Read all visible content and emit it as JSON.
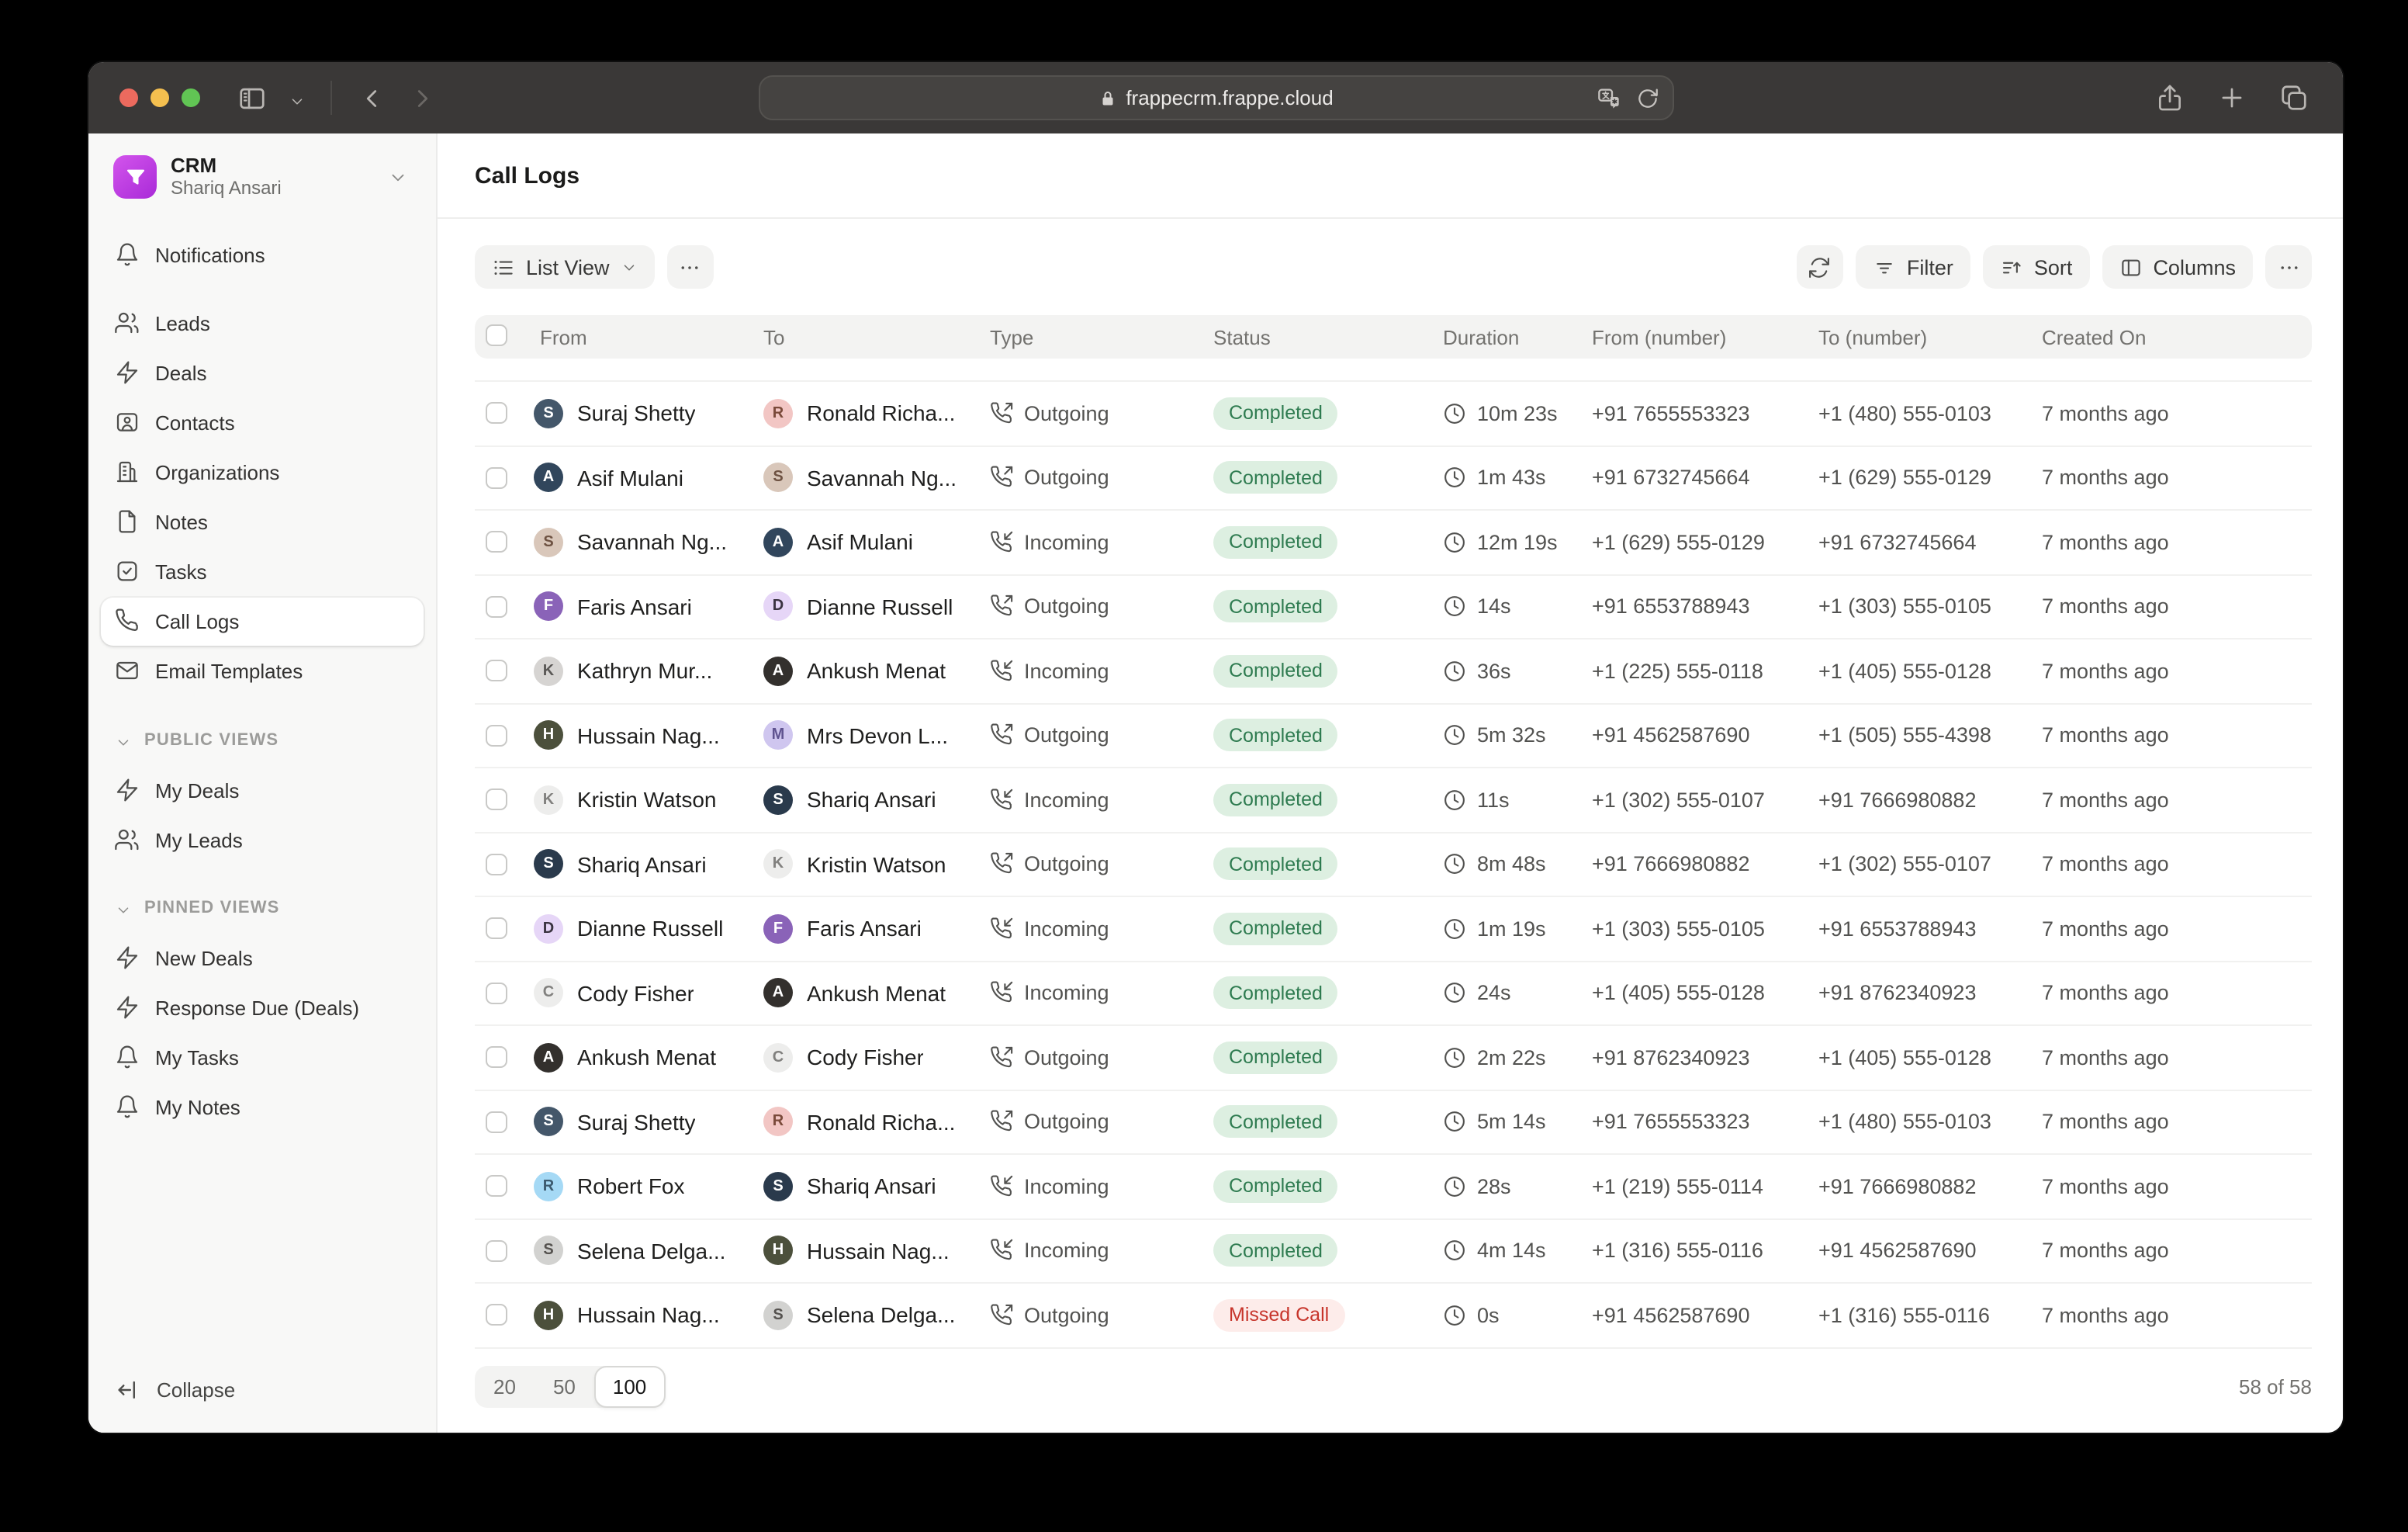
{
  "browser": {
    "url": "frappecrm.frappe.cloud"
  },
  "workspace": {
    "app_name": "CRM",
    "user_name": "Shariq Ansari"
  },
  "sidebar": {
    "nav_items": [
      {
        "label": "Notifications",
        "icon": "bell",
        "gap_below": true
      },
      {
        "label": "Leads",
        "icon": "users"
      },
      {
        "label": "Deals",
        "icon": "zap"
      },
      {
        "label": "Contacts",
        "icon": "contact"
      },
      {
        "label": "Organizations",
        "icon": "building"
      },
      {
        "label": "Notes",
        "icon": "file"
      },
      {
        "label": "Tasks",
        "icon": "check-square"
      },
      {
        "label": "Call Logs",
        "icon": "phone",
        "active": true
      },
      {
        "label": "Email Templates",
        "icon": "envelope"
      }
    ],
    "sections": [
      {
        "title": "PUBLIC VIEWS",
        "items": [
          {
            "label": "My Deals",
            "icon": "zap"
          },
          {
            "label": "My Leads",
            "icon": "users"
          }
        ]
      },
      {
        "title": "PINNED VIEWS",
        "items": [
          {
            "label": "New Deals",
            "icon": "zap"
          },
          {
            "label": "Response Due (Deals)",
            "icon": "zap"
          },
          {
            "label": "My Tasks",
            "icon": "bell"
          },
          {
            "label": "My Notes",
            "icon": "bell"
          }
        ]
      }
    ],
    "collapse_label": "Collapse"
  },
  "page": {
    "title": "Call Logs"
  },
  "toolbar": {
    "view_label": "List View",
    "filter_label": "Filter",
    "sort_label": "Sort",
    "columns_label": "Columns"
  },
  "table": {
    "columns": [
      "From",
      "To",
      "Type",
      "Status",
      "Duration",
      "From (number)",
      "To (number)",
      "Created On"
    ],
    "rows": [
      {
        "from": {
          "name": "Suraj Shetty",
          "avatar": {
            "text": "S",
            "bg": "#44576a",
            "fg": "#ffffff"
          }
        },
        "to": {
          "name": "Ronald Richa...",
          "avatar": {
            "text": "R",
            "bg": "#f2c6c4",
            "fg": "#7a4a3a"
          }
        },
        "type": {
          "label": "Outgoing",
          "icon": "phone-outgoing"
        },
        "status": {
          "label": "Completed",
          "variant": "success"
        },
        "duration": "10m 23s",
        "from_number": "+91 7655553323",
        "to_number": "+1 (480) 555-0103",
        "created": "7 months ago"
      },
      {
        "from": {
          "name": "Asif Mulani",
          "avatar": {
            "text": "A",
            "bg": "#31465c",
            "fg": "#ffffff"
          }
        },
        "to": {
          "name": "Savannah Ng...",
          "avatar": {
            "text": "S",
            "bg": "#d9c7ba",
            "fg": "#6e5242"
          }
        },
        "type": {
          "label": "Outgoing",
          "icon": "phone-outgoing"
        },
        "status": {
          "label": "Completed",
          "variant": "success"
        },
        "duration": "1m 43s",
        "from_number": "+91 6732745664",
        "to_number": "+1 (629) 555-0129",
        "created": "7 months ago"
      },
      {
        "from": {
          "name": "Savannah Ng...",
          "avatar": {
            "text": "S",
            "bg": "#d9c7ba",
            "fg": "#6e5242"
          }
        },
        "to": {
          "name": "Asif Mulani",
          "avatar": {
            "text": "A",
            "bg": "#31465c",
            "fg": "#ffffff"
          }
        },
        "type": {
          "label": "Incoming",
          "icon": "phone-incoming"
        },
        "status": {
          "label": "Completed",
          "variant": "success"
        },
        "duration": "12m 19s",
        "from_number": "+1 (629) 555-0129",
        "to_number": "+91 6732745664",
        "created": "7 months ago"
      },
      {
        "from": {
          "name": "Faris Ansari",
          "avatar": {
            "text": "F",
            "bg": "#8a63b8",
            "fg": "#ffffff"
          }
        },
        "to": {
          "name": "Dianne Russell",
          "avatar": {
            "text": "D",
            "bg": "#e6d6f7",
            "fg": "#3a3340"
          }
        },
        "type": {
          "label": "Outgoing",
          "icon": "phone-outgoing"
        },
        "status": {
          "label": "Completed",
          "variant": "success"
        },
        "duration": "14s",
        "from_number": "+91 6553788943",
        "to_number": "+1 (303) 555-0105",
        "created": "7 months ago"
      },
      {
        "from": {
          "name": "Kathryn Mur...",
          "avatar": {
            "text": "K",
            "bg": "#d6d4d2",
            "fg": "#5a5856"
          }
        },
        "to": {
          "name": "Ankush Menat",
          "avatar": {
            "text": "A",
            "bg": "#33302d",
            "fg": "#ffffff"
          }
        },
        "type": {
          "label": "Incoming",
          "icon": "phone-incoming"
        },
        "status": {
          "label": "Completed",
          "variant": "success"
        },
        "duration": "36s",
        "from_number": "+1 (225) 555-0118",
        "to_number": "+1 (405) 555-0128",
        "created": "7 months ago"
      },
      {
        "from": {
          "name": "Hussain Nag...",
          "avatar": {
            "text": "H",
            "bg": "#4c503c",
            "fg": "#ffffff"
          }
        },
        "to": {
          "name": "Mrs Devon L...",
          "avatar": {
            "text": "M",
            "bg": "#cfc6ef",
            "fg": "#5f5390"
          }
        },
        "type": {
          "label": "Outgoing",
          "icon": "phone-outgoing"
        },
        "status": {
          "label": "Completed",
          "variant": "success"
        },
        "duration": "5m 32s",
        "from_number": "+91 4562587690",
        "to_number": "+1 (505) 555-4398",
        "created": "7 months ago"
      },
      {
        "from": {
          "name": "Kristin Watson",
          "avatar": {
            "text": "K",
            "bg": "#ededec",
            "fg": "#81807e"
          }
        },
        "to": {
          "name": "Shariq Ansari",
          "avatar": {
            "text": "S",
            "bg": "#2a3a4c",
            "fg": "#ffffff"
          }
        },
        "type": {
          "label": "Incoming",
          "icon": "phone-incoming"
        },
        "status": {
          "label": "Completed",
          "variant": "success"
        },
        "duration": "11s",
        "from_number": "+1 (302) 555-0107",
        "to_number": "+91 7666980882",
        "created": "7 months ago"
      },
      {
        "from": {
          "name": "Shariq Ansari",
          "avatar": {
            "text": "S",
            "bg": "#2a3a4c",
            "fg": "#ffffff"
          }
        },
        "to": {
          "name": "Kristin Watson",
          "avatar": {
            "text": "K",
            "bg": "#ededec",
            "fg": "#81807e"
          }
        },
        "type": {
          "label": "Outgoing",
          "icon": "phone-outgoing"
        },
        "status": {
          "label": "Completed",
          "variant": "success"
        },
        "duration": "8m 48s",
        "from_number": "+91 7666980882",
        "to_number": "+1 (302) 555-0107",
        "created": "7 months ago"
      },
      {
        "from": {
          "name": "Dianne Russell",
          "avatar": {
            "text": "D",
            "bg": "#e6d6f7",
            "fg": "#3a3340"
          }
        },
        "to": {
          "name": "Faris Ansari",
          "avatar": {
            "text": "F",
            "bg": "#8a63b8",
            "fg": "#ffffff"
          }
        },
        "type": {
          "label": "Incoming",
          "icon": "phone-incoming"
        },
        "status": {
          "label": "Completed",
          "variant": "success"
        },
        "duration": "1m 19s",
        "from_number": "+1 (303) 555-0105",
        "to_number": "+91 6553788943",
        "created": "7 months ago"
      },
      {
        "from": {
          "name": "Cody Fisher",
          "avatar": {
            "text": "C",
            "bg": "#ededec",
            "fg": "#81807e"
          }
        },
        "to": {
          "name": "Ankush Menat",
          "avatar": {
            "text": "A",
            "bg": "#33302d",
            "fg": "#ffffff"
          }
        },
        "type": {
          "label": "Incoming",
          "icon": "phone-incoming"
        },
        "status": {
          "label": "Completed",
          "variant": "success"
        },
        "duration": "24s",
        "from_number": "+1 (405) 555-0128",
        "to_number": "+91 8762340923",
        "created": "7 months ago"
      },
      {
        "from": {
          "name": "Ankush Menat",
          "avatar": {
            "text": "A",
            "bg": "#33302d",
            "fg": "#ffffff"
          }
        },
        "to": {
          "name": "Cody Fisher",
          "avatar": {
            "text": "C",
            "bg": "#ededec",
            "fg": "#81807e"
          }
        },
        "type": {
          "label": "Outgoing",
          "icon": "phone-outgoing"
        },
        "status": {
          "label": "Completed",
          "variant": "success"
        },
        "duration": "2m 22s",
        "from_number": "+91 8762340923",
        "to_number": "+1 (405) 555-0128",
        "created": "7 months ago"
      },
      {
        "from": {
          "name": "Suraj Shetty",
          "avatar": {
            "text": "S",
            "bg": "#44576a",
            "fg": "#ffffff"
          }
        },
        "to": {
          "name": "Ronald Richa...",
          "avatar": {
            "text": "R",
            "bg": "#f2c6c4",
            "fg": "#7a4a3a"
          }
        },
        "type": {
          "label": "Outgoing",
          "icon": "phone-outgoing"
        },
        "status": {
          "label": "Completed",
          "variant": "success"
        },
        "duration": "5m 14s",
        "from_number": "+91 7655553323",
        "to_number": "+1 (480) 555-0103",
        "created": "7 months ago"
      },
      {
        "from": {
          "name": "Robert Fox",
          "avatar": {
            "text": "R",
            "bg": "#a5d9f5",
            "fg": "#3c5a6e"
          }
        },
        "to": {
          "name": "Shariq Ansari",
          "avatar": {
            "text": "S",
            "bg": "#2a3a4c",
            "fg": "#ffffff"
          }
        },
        "type": {
          "label": "Incoming",
          "icon": "phone-incoming"
        },
        "status": {
          "label": "Completed",
          "variant": "success"
        },
        "duration": "28s",
        "from_number": "+1 (219) 555-0114",
        "to_number": "+91 7666980882",
        "created": "7 months ago"
      },
      {
        "from": {
          "name": "Selena Delga...",
          "avatar": {
            "text": "S",
            "bg": "#d2d2d0",
            "fg": "#55524f"
          }
        },
        "to": {
          "name": "Hussain Nag...",
          "avatar": {
            "text": "H",
            "bg": "#4c503c",
            "fg": "#ffffff"
          }
        },
        "type": {
          "label": "Incoming",
          "icon": "phone-incoming"
        },
        "status": {
          "label": "Completed",
          "variant": "success"
        },
        "duration": "4m 14s",
        "from_number": "+1 (316) 555-0116",
        "to_number": "+91 4562587690",
        "created": "7 months ago"
      },
      {
        "from": {
          "name": "Hussain Nag...",
          "avatar": {
            "text": "H",
            "bg": "#4c503c",
            "fg": "#ffffff"
          }
        },
        "to": {
          "name": "Selena Delga...",
          "avatar": {
            "text": "S",
            "bg": "#d2d2d0",
            "fg": "#55524f"
          }
        },
        "type": {
          "label": "Outgoing",
          "icon": "phone-outgoing"
        },
        "status": {
          "label": "Missed Call",
          "variant": "danger"
        },
        "duration": "0s",
        "from_number": "+91 4562587690",
        "to_number": "+1 (316) 555-0116",
        "created": "7 months ago"
      }
    ]
  },
  "pagination": {
    "options": [
      "20",
      "50",
      "100"
    ],
    "selected": "100",
    "count_label": "58 of 58"
  },
  "colors": {
    "accent_purple": "#b83be0",
    "badge_success_bg": "#ddefe1",
    "badge_success_fg": "#2e7b50",
    "badge_danger_bg": "#fdecea",
    "badge_danger_fg": "#c7352b",
    "traffic_red": "#ec6a5e",
    "traffic_yellow": "#f4bf4f",
    "traffic_green": "#61c554",
    "chrome_bg": "#3a3837",
    "sidebar_bg": "#f8f8f7"
  }
}
